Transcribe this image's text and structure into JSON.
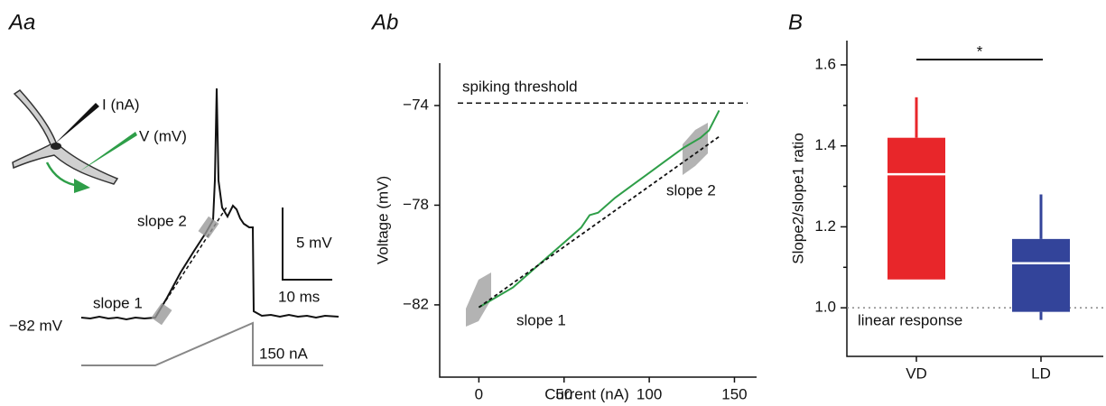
{
  "chart_data": [
    {
      "type": "trace",
      "panel": "Aa",
      "labels": {
        "electrode_current": "I (nA)",
        "electrode_voltage": "V (mV)",
        "slope1": "slope 1",
        "slope2": "slope 2",
        "rest": "−82 mV",
        "scale_v": "5 mV",
        "scale_t": "10 ms",
        "scale_i": "150 nA"
      }
    },
    {
      "type": "line",
      "panel": "Ab",
      "xlabel": "Current (nA)",
      "ylabel": "Voltage (mV)",
      "xlim": [
        -23,
        163
      ],
      "xticks": [
        0,
        50,
        100,
        150
      ],
      "ylim": [
        -84.9,
        -72.3
      ],
      "yticks": [
        {
          "value": -82,
          "label": "−82"
        },
        {
          "value": -78,
          "label": "−78"
        },
        {
          "value": -74,
          "label": "−74"
        }
      ],
      "series": [
        {
          "color": "#2e9e48",
          "dash": false,
          "x": [
            0,
            10,
            20,
            30,
            40,
            50,
            60,
            65,
            70,
            80,
            90,
            100,
            110,
            120,
            130,
            135,
            141
          ],
          "values": [
            -82.1,
            -81.7,
            -81.3,
            -80.7,
            -80.1,
            -79.5,
            -78.9,
            -78.4,
            -78.3,
            -77.7,
            -77.2,
            -76.7,
            -76.2,
            -75.7,
            -75.3,
            -75.0,
            -74.2
          ]
        },
        {
          "color": "#111111",
          "dash": true,
          "x": [
            0,
            142
          ],
          "values": [
            -82.1,
            -75.2
          ]
        }
      ],
      "threshold": {
        "value": -73.9,
        "label": "spiking threshold"
      },
      "annotations": {
        "slope1": "slope 1",
        "slope2": "slope 2"
      }
    },
    {
      "type": "box",
      "panel": "B",
      "ylabel": "Slope2/slope1 ratio",
      "categories": [
        "VD",
        "LD"
      ],
      "ylim": [
        0.88,
        1.66
      ],
      "yticks": [
        {
          "value": 1.0,
          "label": "1.0"
        },
        1.2,
        1.4,
        1.6
      ],
      "yminorticks": [
        1.1,
        1.3,
        1.5
      ],
      "stats": [
        {
          "min": 1.07,
          "q1": 1.07,
          "median": 1.33,
          "q3": 1.42,
          "max": 1.52,
          "color": "#e8262a"
        },
        {
          "min": 0.97,
          "q1": 0.99,
          "median": 1.11,
          "q3": 1.17,
          "max": 1.28,
          "color": "#33449a"
        }
      ],
      "reference": {
        "value": 1.0,
        "label": "linear response"
      },
      "significance": "*"
    }
  ]
}
